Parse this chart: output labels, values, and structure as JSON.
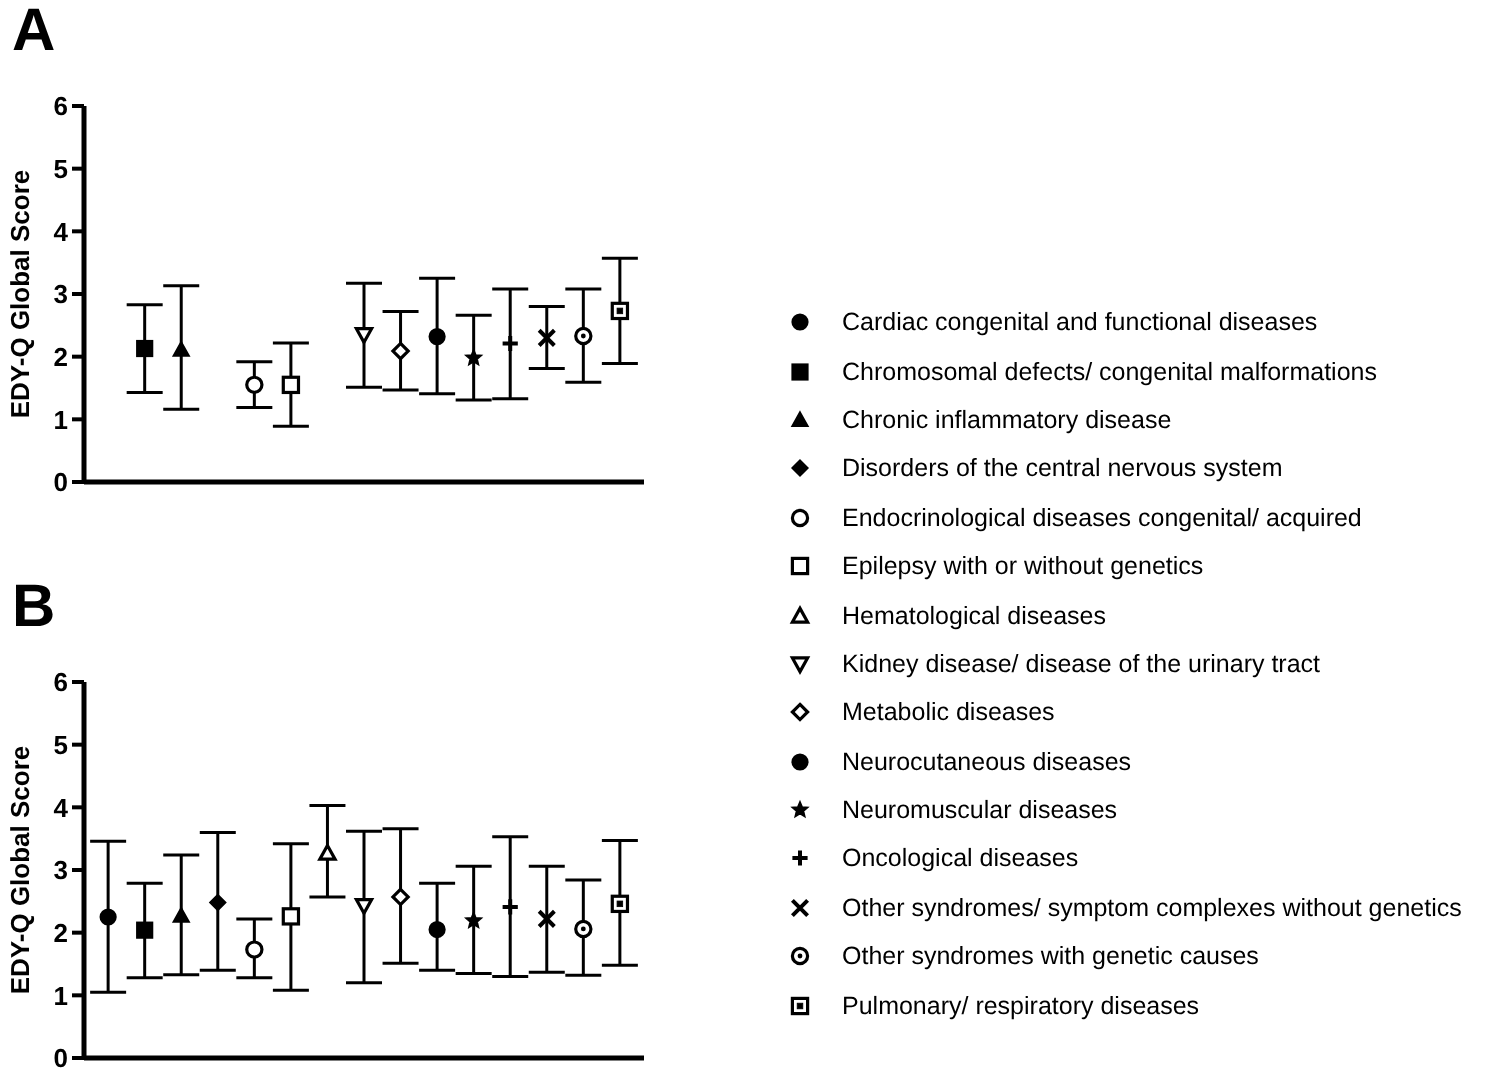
{
  "chart_data": [
    {
      "type": "scatter",
      "title": "A",
      "ylabel": "EDY-Q Global Score",
      "categories": [
        null,
        null,
        null,
        null,
        null,
        null,
        null,
        null,
        null,
        null,
        null,
        null,
        null,
        null,
        null
      ],
      "ylim": [
        0,
        6
      ],
      "yticks": [
        0,
        1,
        2,
        3,
        4,
        5,
        6
      ],
      "legend": false,
      "grid": false,
      "tick_labels": "y",
      "series": [
        {
          "color": "#000000",
          "marker": "square",
          "values": [
            null,
            2.13,
            null,
            null,
            null,
            null,
            null,
            null,
            null,
            null,
            null,
            null,
            null,
            null,
            null
          ],
          "errors": [
            null,
            [
              1.43,
              2.83
            ],
            null,
            null,
            null,
            null,
            null,
            null,
            null,
            null,
            null,
            null,
            null,
            null,
            null
          ]
        },
        {
          "color": "#000000",
          "marker": "triangle",
          "values": [
            null,
            null,
            2.11,
            null,
            null,
            null,
            null,
            null,
            null,
            null,
            null,
            null,
            null,
            null,
            null
          ],
          "errors": [
            null,
            null,
            [
              1.16,
              3.13
            ],
            null,
            null,
            null,
            null,
            null,
            null,
            null,
            null,
            null,
            null,
            null,
            null
          ]
        },
        {
          "color": "#000000",
          "marker": "circle-open",
          "values": [
            null,
            null,
            null,
            null,
            1.55,
            null,
            null,
            null,
            null,
            null,
            null,
            null,
            null,
            null,
            null
          ],
          "errors": [
            null,
            null,
            null,
            null,
            [
              1.19,
              1.92
            ],
            null,
            null,
            null,
            null,
            null,
            null,
            null,
            null,
            null,
            null
          ]
        },
        {
          "color": "#000000",
          "marker": "square-open",
          "values": [
            null,
            null,
            null,
            null,
            null,
            1.55,
            null,
            null,
            null,
            null,
            null,
            null,
            null,
            null,
            null
          ],
          "errors": [
            null,
            null,
            null,
            null,
            null,
            [
              0.89,
              2.22
            ],
            null,
            null,
            null,
            null,
            null,
            null,
            null,
            null,
            null
          ]
        },
        {
          "color": "#000000",
          "marker": "triangle-down-open",
          "values": [
            null,
            null,
            null,
            null,
            null,
            null,
            null,
            2.35,
            null,
            null,
            null,
            null,
            null,
            null,
            null
          ],
          "errors": [
            null,
            null,
            null,
            null,
            null,
            null,
            null,
            [
              1.51,
              3.17
            ],
            null,
            null,
            null,
            null,
            null,
            null,
            null
          ]
        },
        {
          "color": "#000000",
          "marker": "diamond-open",
          "values": [
            null,
            null,
            null,
            null,
            null,
            null,
            null,
            null,
            2.09,
            null,
            null,
            null,
            null,
            null,
            null
          ],
          "errors": [
            null,
            null,
            null,
            null,
            null,
            null,
            null,
            null,
            [
              1.47,
              2.72
            ],
            null,
            null,
            null,
            null,
            null,
            null
          ]
        },
        {
          "color": "#000000",
          "marker": "circle",
          "values": [
            null,
            null,
            null,
            null,
            null,
            null,
            null,
            null,
            null,
            2.32,
            null,
            null,
            null,
            null,
            null
          ],
          "errors": [
            null,
            null,
            null,
            null,
            null,
            null,
            null,
            null,
            null,
            [
              1.41,
              3.25
            ],
            null,
            null,
            null,
            null,
            null
          ]
        },
        {
          "color": "#000000",
          "marker": "star",
          "values": [
            null,
            null,
            null,
            null,
            null,
            null,
            null,
            null,
            null,
            null,
            1.98,
            null,
            null,
            null,
            null
          ],
          "errors": [
            null,
            null,
            null,
            null,
            null,
            null,
            null,
            null,
            null,
            null,
            [
              1.31,
              2.66
            ],
            null,
            null,
            null,
            null
          ]
        },
        {
          "color": "#000000",
          "marker": "cross",
          "values": [
            null,
            null,
            null,
            null,
            null,
            null,
            null,
            null,
            null,
            null,
            null,
            2.21,
            null,
            null,
            null
          ],
          "errors": [
            null,
            null,
            null,
            null,
            null,
            null,
            null,
            null,
            null,
            null,
            null,
            [
              1.33,
              3.08
            ],
            null,
            null,
            null
          ]
        },
        {
          "color": "#000000",
          "marker": "x",
          "values": [
            null,
            null,
            null,
            null,
            null,
            null,
            null,
            null,
            null,
            null,
            null,
            null,
            2.3,
            null,
            null
          ],
          "errors": [
            null,
            null,
            null,
            null,
            null,
            null,
            null,
            null,
            null,
            null,
            null,
            null,
            [
              1.81,
              2.8
            ],
            null,
            null
          ]
        },
        {
          "color": "#000000",
          "marker": "circle-dot",
          "values": [
            null,
            null,
            null,
            null,
            null,
            null,
            null,
            null,
            null,
            null,
            null,
            null,
            null,
            2.33,
            null
          ],
          "errors": [
            null,
            null,
            null,
            null,
            null,
            null,
            null,
            null,
            null,
            null,
            null,
            null,
            null,
            [
              1.59,
              3.08
            ],
            null
          ]
        },
        {
          "color": "#000000",
          "marker": "square-dot",
          "values": [
            null,
            null,
            null,
            null,
            null,
            null,
            null,
            null,
            null,
            null,
            null,
            null,
            null,
            null,
            2.73
          ],
          "errors": [
            null,
            null,
            null,
            null,
            null,
            null,
            null,
            null,
            null,
            null,
            null,
            null,
            null,
            null,
            [
              1.89,
              3.57
            ]
          ]
        }
      ]
    },
    {
      "type": "scatter",
      "title": "B",
      "ylabel": "EDY-Q Global Score",
      "categories": [
        null,
        null,
        null,
        null,
        null,
        null,
        null,
        null,
        null,
        null,
        null,
        null,
        null,
        null,
        null
      ],
      "ylim": [
        0,
        6
      ],
      "yticks": [
        0,
        1,
        2,
        3,
        4,
        5,
        6
      ],
      "legend": "right",
      "grid": false,
      "tick_labels": "y",
      "series": [
        {
          "name": "Cardiac congenital and functional diseases",
          "color": "#000000",
          "marker": "circle",
          "values": [
            2.25,
            null,
            null,
            null,
            null,
            null,
            null,
            null,
            null,
            null,
            null,
            null,
            null,
            null,
            null
          ],
          "errors": [
            [
              1.05,
              3.46
            ],
            null,
            null,
            null,
            null,
            null,
            null,
            null,
            null,
            null,
            null,
            null,
            null,
            null,
            null
          ]
        },
        {
          "name": "Chromosomal defects/ congenital malformations",
          "color": "#000000",
          "marker": "square",
          "values": [
            null,
            2.04,
            null,
            null,
            null,
            null,
            null,
            null,
            null,
            null,
            null,
            null,
            null,
            null,
            null
          ],
          "errors": [
            null,
            [
              1.28,
              2.79
            ],
            null,
            null,
            null,
            null,
            null,
            null,
            null,
            null,
            null,
            null,
            null,
            null,
            null
          ]
        },
        {
          "name": "Chronic inflammatory disease",
          "color": "#000000",
          "marker": "triangle",
          "values": [
            null,
            null,
            2.27,
            null,
            null,
            null,
            null,
            null,
            null,
            null,
            null,
            null,
            null,
            null,
            null
          ],
          "errors": [
            null,
            null,
            [
              1.33,
              3.24
            ],
            null,
            null,
            null,
            null,
            null,
            null,
            null,
            null,
            null,
            null,
            null,
            null
          ]
        },
        {
          "name": "Disorders of the central nervous system",
          "color": "#000000",
          "marker": "diamond",
          "values": [
            null,
            null,
            null,
            2.48,
            null,
            null,
            null,
            null,
            null,
            null,
            null,
            null,
            null,
            null,
            null
          ],
          "errors": [
            null,
            null,
            null,
            [
              1.4,
              3.6
            ],
            null,
            null,
            null,
            null,
            null,
            null,
            null,
            null,
            null,
            null,
            null
          ]
        },
        {
          "name": "Endocrinological diseases congenital/ acquired",
          "color": "#000000",
          "marker": "circle-open",
          "values": [
            null,
            null,
            null,
            null,
            1.73,
            null,
            null,
            null,
            null,
            null,
            null,
            null,
            null,
            null,
            null
          ],
          "errors": [
            null,
            null,
            null,
            null,
            [
              1.28,
              2.22
            ],
            null,
            null,
            null,
            null,
            null,
            null,
            null,
            null,
            null,
            null
          ]
        },
        {
          "name": "Epilepsy with or without genetics",
          "color": "#000000",
          "marker": "square-open",
          "values": [
            null,
            null,
            null,
            null,
            null,
            2.26,
            null,
            null,
            null,
            null,
            null,
            null,
            null,
            null,
            null
          ],
          "errors": [
            null,
            null,
            null,
            null,
            null,
            [
              1.08,
              3.42
            ],
            null,
            null,
            null,
            null,
            null,
            null,
            null,
            null,
            null
          ]
        },
        {
          "name": "Hematological diseases",
          "color": "#000000",
          "marker": "triangle-open",
          "values": [
            null,
            null,
            null,
            null,
            null,
            null,
            3.27,
            null,
            null,
            null,
            null,
            null,
            null,
            null,
            null
          ],
          "errors": [
            null,
            null,
            null,
            null,
            null,
            null,
            [
              2.57,
              4.03
            ],
            null,
            null,
            null,
            null,
            null,
            null,
            null,
            null
          ]
        },
        {
          "name": "Kidney disease/ disease of the urinary tract",
          "color": "#000000",
          "marker": "triangle-down-open",
          "values": [
            null,
            null,
            null,
            null,
            null,
            null,
            null,
            2.43,
            null,
            null,
            null,
            null,
            null,
            null,
            null
          ],
          "errors": [
            null,
            null,
            null,
            null,
            null,
            null,
            null,
            [
              1.2,
              3.62
            ],
            null,
            null,
            null,
            null,
            null,
            null,
            null
          ]
        },
        {
          "name": "Metabolic diseases",
          "color": "#000000",
          "marker": "diamond-open",
          "values": [
            null,
            null,
            null,
            null,
            null,
            null,
            null,
            null,
            2.57,
            null,
            null,
            null,
            null,
            null,
            null
          ],
          "errors": [
            null,
            null,
            null,
            null,
            null,
            null,
            null,
            null,
            [
              1.51,
              3.66
            ],
            null,
            null,
            null,
            null,
            null,
            null
          ]
        },
        {
          "name": "Neurocutaneous diseases",
          "color": "#000000",
          "marker": "circle",
          "values": [
            null,
            null,
            null,
            null,
            null,
            null,
            null,
            null,
            null,
            2.05,
            null,
            null,
            null,
            null,
            null
          ],
          "errors": [
            null,
            null,
            null,
            null,
            null,
            null,
            null,
            null,
            null,
            [
              1.4,
              2.79
            ],
            null,
            null,
            null,
            null,
            null
          ]
        },
        {
          "name": "Neuromuscular diseases",
          "color": "#000000",
          "marker": "star",
          "values": [
            null,
            null,
            null,
            null,
            null,
            null,
            null,
            null,
            null,
            null,
            2.19,
            null,
            null,
            null,
            null
          ],
          "errors": [
            null,
            null,
            null,
            null,
            null,
            null,
            null,
            null,
            null,
            null,
            [
              1.35,
              3.06
            ],
            null,
            null,
            null,
            null
          ]
        },
        {
          "name": "Oncological diseases",
          "color": "#000000",
          "marker": "cross",
          "values": [
            null,
            null,
            null,
            null,
            null,
            null,
            null,
            null,
            null,
            null,
            null,
            2.41,
            null,
            null,
            null
          ],
          "errors": [
            null,
            null,
            null,
            null,
            null,
            null,
            null,
            null,
            null,
            null,
            null,
            [
              1.3,
              3.53
            ],
            null,
            null,
            null
          ]
        },
        {
          "name": "Other syndromes/ symptom complexes without genetics",
          "color": "#000000",
          "marker": "x",
          "values": [
            null,
            null,
            null,
            null,
            null,
            null,
            null,
            null,
            null,
            null,
            null,
            null,
            2.22,
            null,
            null
          ],
          "errors": [
            null,
            null,
            null,
            null,
            null,
            null,
            null,
            null,
            null,
            null,
            null,
            null,
            [
              1.37,
              3.06
            ],
            null,
            null
          ]
        },
        {
          "name": "Other syndromes with genetic causes",
          "color": "#000000",
          "marker": "circle-dot",
          "values": [
            null,
            null,
            null,
            null,
            null,
            null,
            null,
            null,
            null,
            null,
            null,
            null,
            null,
            2.06,
            null
          ],
          "errors": [
            null,
            null,
            null,
            null,
            null,
            null,
            null,
            null,
            null,
            null,
            null,
            null,
            null,
            [
              1.32,
              2.84
            ],
            null
          ]
        },
        {
          "name": "Pulmonary/ respiratory diseases",
          "color": "#000000",
          "marker": "square-dot",
          "values": [
            null,
            null,
            null,
            null,
            null,
            null,
            null,
            null,
            null,
            null,
            null,
            null,
            null,
            null,
            2.46
          ],
          "errors": [
            null,
            null,
            null,
            null,
            null,
            null,
            null,
            null,
            null,
            null,
            null,
            null,
            null,
            null,
            [
              1.48,
              3.47
            ]
          ]
        }
      ]
    }
  ]
}
